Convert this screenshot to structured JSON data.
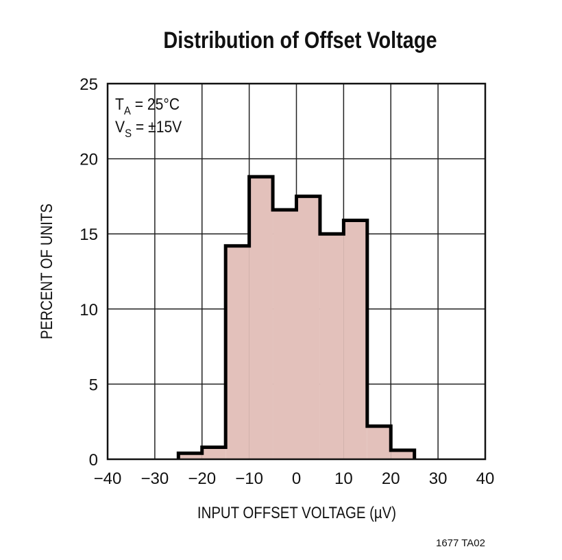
{
  "chart_data": {
    "type": "bar",
    "title": "Distribution of Offset Voltage",
    "xlabel": "INPUT OFFSET VOLTAGE (µV)",
    "ylabel": "PERCENT OF UNITS",
    "xlim": [
      -40,
      40
    ],
    "ylim": [
      0,
      25
    ],
    "xticks": [
      "−40",
      "−30",
      "−20",
      "−10",
      "0",
      "10",
      "20",
      "30",
      "40"
    ],
    "yticks": [
      "0",
      "5",
      "10",
      "15",
      "20",
      "25"
    ],
    "grid": true,
    "bin_edges": [
      -25,
      -20,
      -15,
      -10,
      -5,
      0,
      5,
      10,
      15,
      20,
      25
    ],
    "values": [
      0.4,
      0.8,
      14.2,
      18.8,
      16.6,
      17.5,
      15.0,
      15.9,
      2.2,
      0.6
    ],
    "annotations": {
      "ta_label": "T",
      "ta_sub": "A",
      "ta_value": " = 25°C",
      "vs_label": "V",
      "vs_sub": "S",
      "vs_value": " = ±15V"
    },
    "fill_color": "#e3c1bb",
    "footnote": "1677 TA02"
  }
}
